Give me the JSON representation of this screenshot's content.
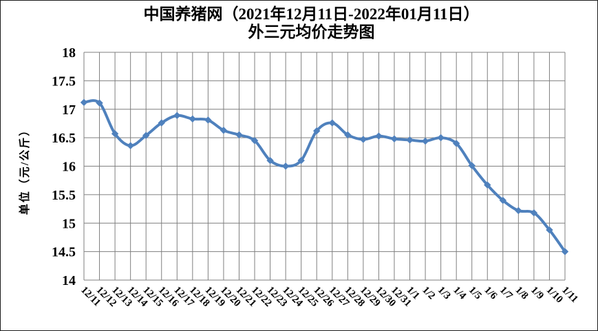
{
  "title": {
    "line1": "中国养猪网（2021年12月11日-2022年01月11日）",
    "line2": "外三元均价走势图"
  },
  "chart_data": {
    "type": "line",
    "title": "中国养猪网（2021年12月11日-2022年01月11日）外三元均价走势图",
    "ylabel": "单位（元/公斤）",
    "xlabel": "",
    "categories": [
      "12/11",
      "12/12",
      "12/13",
      "12/14",
      "12/15",
      "12/16",
      "12/17",
      "12/18",
      "12/19",
      "12/20",
      "12/21",
      "12/22",
      "12/23",
      "12/24",
      "12/25",
      "12/26",
      "12/27",
      "12/28",
      "12/29",
      "12/30",
      "12/31",
      "1/1",
      "1/2",
      "1/3",
      "1/4",
      "1/5",
      "1/6",
      "1/7",
      "1/8",
      "1/9",
      "1/10",
      "1/11"
    ],
    "values": [
      17.12,
      17.11,
      16.57,
      16.36,
      16.54,
      16.76,
      16.89,
      16.83,
      16.81,
      16.63,
      16.55,
      16.45,
      16.1,
      16.0,
      16.1,
      16.62,
      16.76,
      16.55,
      16.47,
      16.53,
      16.48,
      16.46,
      16.44,
      16.5,
      16.4,
      16.01,
      15.67,
      15.4,
      15.22,
      15.18,
      14.88,
      14.5
    ],
    "ylim": [
      14,
      18
    ],
    "y_tick_step": 0.5,
    "y_tick_labels": [
      "18",
      "17.5",
      "17",
      "16.5",
      "16",
      "15.5",
      "15",
      "14.5",
      "14"
    ],
    "x_tick_rotation_deg": 45,
    "grid": true,
    "legend": "none",
    "smoothed_line": true,
    "marker": "diamond",
    "colors": {
      "line": "#4f81bd",
      "marker": "#4f81bd",
      "grid": "#7f7f7f",
      "text": "#000000",
      "background": "#ffffff"
    }
  }
}
